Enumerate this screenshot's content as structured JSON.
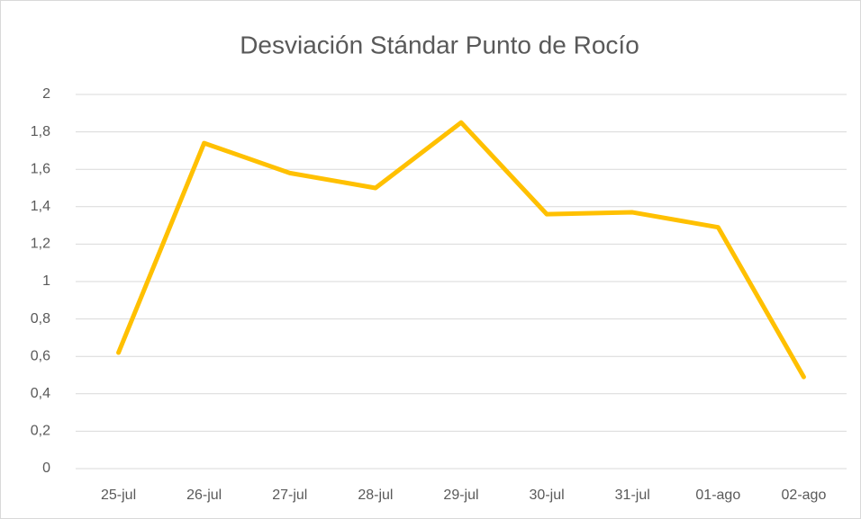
{
  "chart_data": {
    "type": "line",
    "title": "Desviación Stándar Punto de Rocío",
    "categories": [
      "25-jul",
      "26-jul",
      "27-jul",
      "28-jul",
      "29-jul",
      "30-jul",
      "31-jul",
      "01-ago",
      "02-ago"
    ],
    "series": [
      {
        "color": "#ffc000",
        "values": [
          0.62,
          1.74,
          1.58,
          1.5,
          1.85,
          1.36,
          1.37,
          1.29,
          0.49
        ]
      }
    ],
    "ylim": [
      0,
      2
    ],
    "yticks": [
      0,
      {
        "value": 0.2,
        "label": "0,2"
      },
      {
        "value": 0.4,
        "label": "0,4"
      },
      {
        "value": 0.6,
        "label": "0,6"
      },
      {
        "value": 0.8,
        "label": "0,8"
      },
      1,
      {
        "value": 1.2,
        "label": "1,2"
      },
      {
        "value": 1.4,
        "label": "1,4"
      },
      {
        "value": 1.6,
        "label": "1,6"
      },
      {
        "value": 1.8,
        "label": "1,8"
      },
      2
    ],
    "grid": true
  }
}
